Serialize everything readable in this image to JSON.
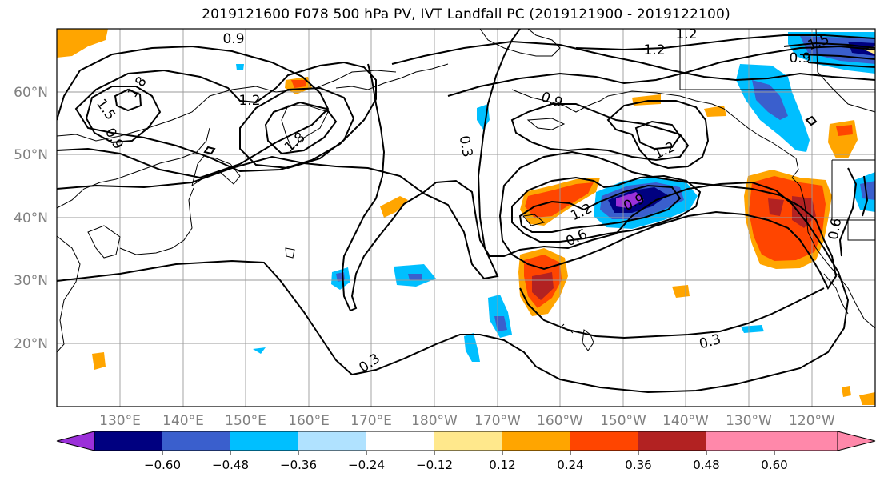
{
  "title": "2019121600 F078 500 hPa PV, IVT Landfall PC (2019121900 - 2019122100)",
  "latitude_labels": [
    "60°N",
    "50°N",
    "40°N",
    "30°N",
    "20°N"
  ],
  "longitude_labels": [
    "130°E",
    "140°E",
    "150°E",
    "160°E",
    "170°E",
    "180°W",
    "170°W",
    "160°W",
    "150°W",
    "140°W",
    "130°W",
    "120°W"
  ],
  "contour_labels": [
    "0.9",
    "1.8",
    "1.2",
    "1.5",
    "0.9",
    "1.8",
    "1.2",
    "0.9",
    "0.3",
    "1.2",
    "0.9",
    "1.2",
    "0.6",
    "0.3",
    "0.3",
    "0.6",
    "1.2",
    "1.5",
    "0.9"
  ],
  "colorbar": {
    "ticks": [
      "−0.60",
      "−0.48",
      "−0.36",
      "−0.24",
      "−0.12",
      "0.12",
      "0.24",
      "0.36",
      "0.48",
      "0.60"
    ],
    "colors": {
      "lt_-0.60": "#9b30d9",
      "-0.60_-0.48": "#000080",
      "-0.48_-0.36": "#3a5fcd",
      "-0.36_-0.24": "#00bfff",
      "-0.24_-0.12": "#b0e2ff",
      "-0.12_0.12": "#ffffff",
      "0.12_0.24": "#ffe88c",
      "0.24_0.36": "#ffa500",
      "0.36_0.48": "#ff4500",
      "0.48_0.60": "#b22222",
      "gt_0.60": "#ff88aa"
    }
  }
}
